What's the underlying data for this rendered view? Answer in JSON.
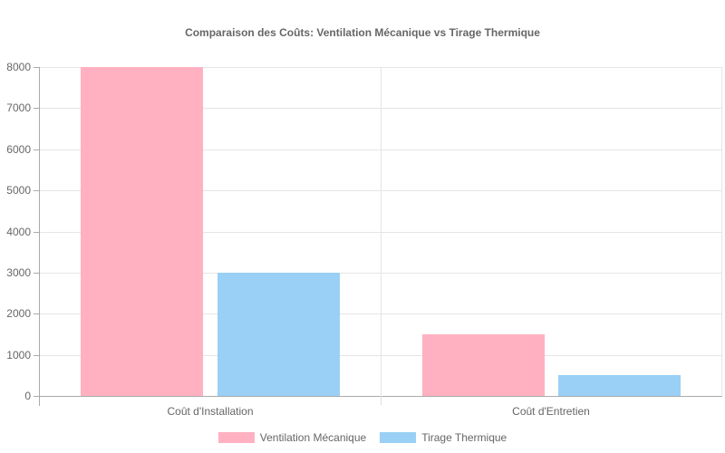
{
  "chart_data": {
    "type": "bar",
    "title": "Comparaison des Coûts: Ventilation Mécanique vs Tirage Thermique",
    "categories": [
      "Coût d'Installation",
      "Coût d'Entretien"
    ],
    "series": [
      {
        "name": "Ventilation Mécanique",
        "color": "#ffb1c1",
        "values": [
          8000,
          1500
        ]
      },
      {
        "name": "Tirage Thermique",
        "color": "#9ad0f5",
        "values": [
          3000,
          500
        ]
      }
    ],
    "xlabel": "",
    "ylabel": "",
    "ylim": [
      0,
      8000
    ],
    "yticks": [
      "8000",
      "7000",
      "6000",
      "5000",
      "4000",
      "3000",
      "2000",
      "1000",
      "0"
    ],
    "grid": true,
    "legend_position": "bottom"
  },
  "labels": {
    "title": "Comparaison des Coûts: Ventilation Mécanique vs Tirage Thermique",
    "y": [
      "8000",
      "7000",
      "6000",
      "5000",
      "4000",
      "3000",
      "2000",
      "1000",
      "0"
    ],
    "x": [
      "Coût d'Installation",
      "Coût d'Entretien"
    ],
    "legend": [
      "Ventilation Mécanique",
      "Tirage Thermique"
    ]
  }
}
